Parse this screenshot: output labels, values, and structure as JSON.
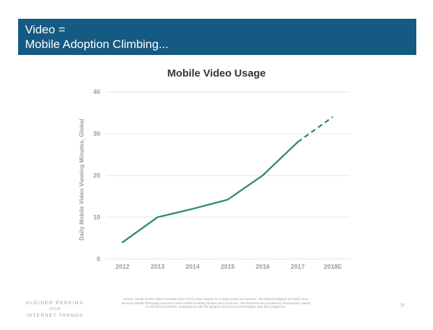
{
  "header": {
    "title_line1": "Video =",
    "title_line2": "Mobile Adoption Climbing..."
  },
  "chart_data": {
    "type": "line",
    "title": "Mobile Video Usage",
    "ylabel": "Daily Mobile Video Viewing Minutes, Global",
    "xlabel": "",
    "categories": [
      "2012",
      "2013",
      "2014",
      "2015",
      "2016",
      "2017",
      "2018E"
    ],
    "ylim": [
      0,
      40
    ],
    "yticks": [
      0,
      10,
      20,
      30,
      40
    ],
    "series": [
      {
        "values": [
          4,
          10,
          12,
          14.2,
          20,
          28,
          34
        ],
        "color": "#2e8b73",
        "estimate_from_index": 5
      }
    ],
    "grid": true,
    "legend": "none"
  },
  "footer": {
    "logo_line1": "KLEINER PERKINS",
    "logo_line2": "2018",
    "logo_line3": "INTERNET TRENDS",
    "source": "Source: Zenith Online Video Forecasts 2017 (7/17). Note: Based on a study across 63 countries. The historical figures are taken from the most reliable third-party sources in each market including Nielsen and comScore. The forecasts are provided by local experts, based on the historical trends, comparisons with the adoption of previous technologies, and their judgement.",
    "page_number": "23"
  },
  "colors": {
    "banner": "#155a82",
    "line": "#2e8b73",
    "gridline": "#e3e3e3",
    "tick_text": "#9a9a9a"
  }
}
